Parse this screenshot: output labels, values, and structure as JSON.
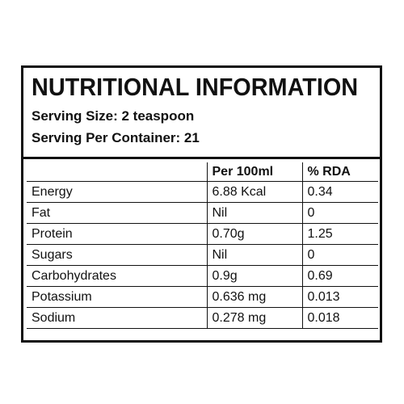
{
  "header": {
    "title": "NUTRITIONAL INFORMATION",
    "serving_size": "Serving Size: 2 teaspoon",
    "servings_per_container": "Serving Per Container: 21"
  },
  "table": {
    "columns": [
      "Per 100ml",
      "% RDA"
    ],
    "rows": [
      [
        "Energy",
        "6.88 Kcal",
        "0.34"
      ],
      [
        "Fat",
        "Nil",
        "0"
      ],
      [
        "Protein",
        "0.70g",
        "1.25"
      ],
      [
        "Sugars",
        "Nil",
        "0"
      ],
      [
        "Carbohydrates",
        "0.9g",
        "0.69"
      ],
      [
        "Potassium",
        "0.636 mg",
        "0.013"
      ],
      [
        "Sodium",
        "0.278 mg",
        "0.018"
      ]
    ]
  }
}
